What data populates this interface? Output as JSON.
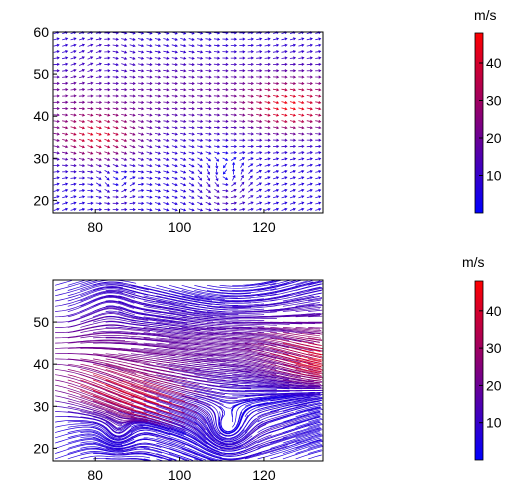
{
  "colors": {
    "low": "#0000ff",
    "high": "#ff0000",
    "axis": "#000000"
  },
  "chart_data": [
    {
      "type": "vector-field",
      "style": "arrows",
      "xlim": [
        70,
        134
      ],
      "ylim": [
        17,
        60
      ],
      "x_ticks": [
        80,
        100,
        120
      ],
      "y_ticks": [
        20,
        30,
        40,
        50,
        60
      ],
      "colorbar": {
        "unit": "m/s",
        "ticks": [
          10,
          20,
          30,
          40
        ],
        "range": [
          0,
          48
        ]
      }
    },
    {
      "type": "vector-field",
      "style": "streamlines",
      "xlim": [
        70,
        134
      ],
      "ylim": [
        17,
        60
      ],
      "x_ticks": [
        80,
        100,
        120
      ],
      "y_ticks": [
        20,
        30,
        40,
        50
      ],
      "colorbar": {
        "unit": "m/s",
        "ticks": [
          10,
          20,
          30,
          40
        ],
        "range": [
          0,
          48
        ]
      }
    }
  ]
}
